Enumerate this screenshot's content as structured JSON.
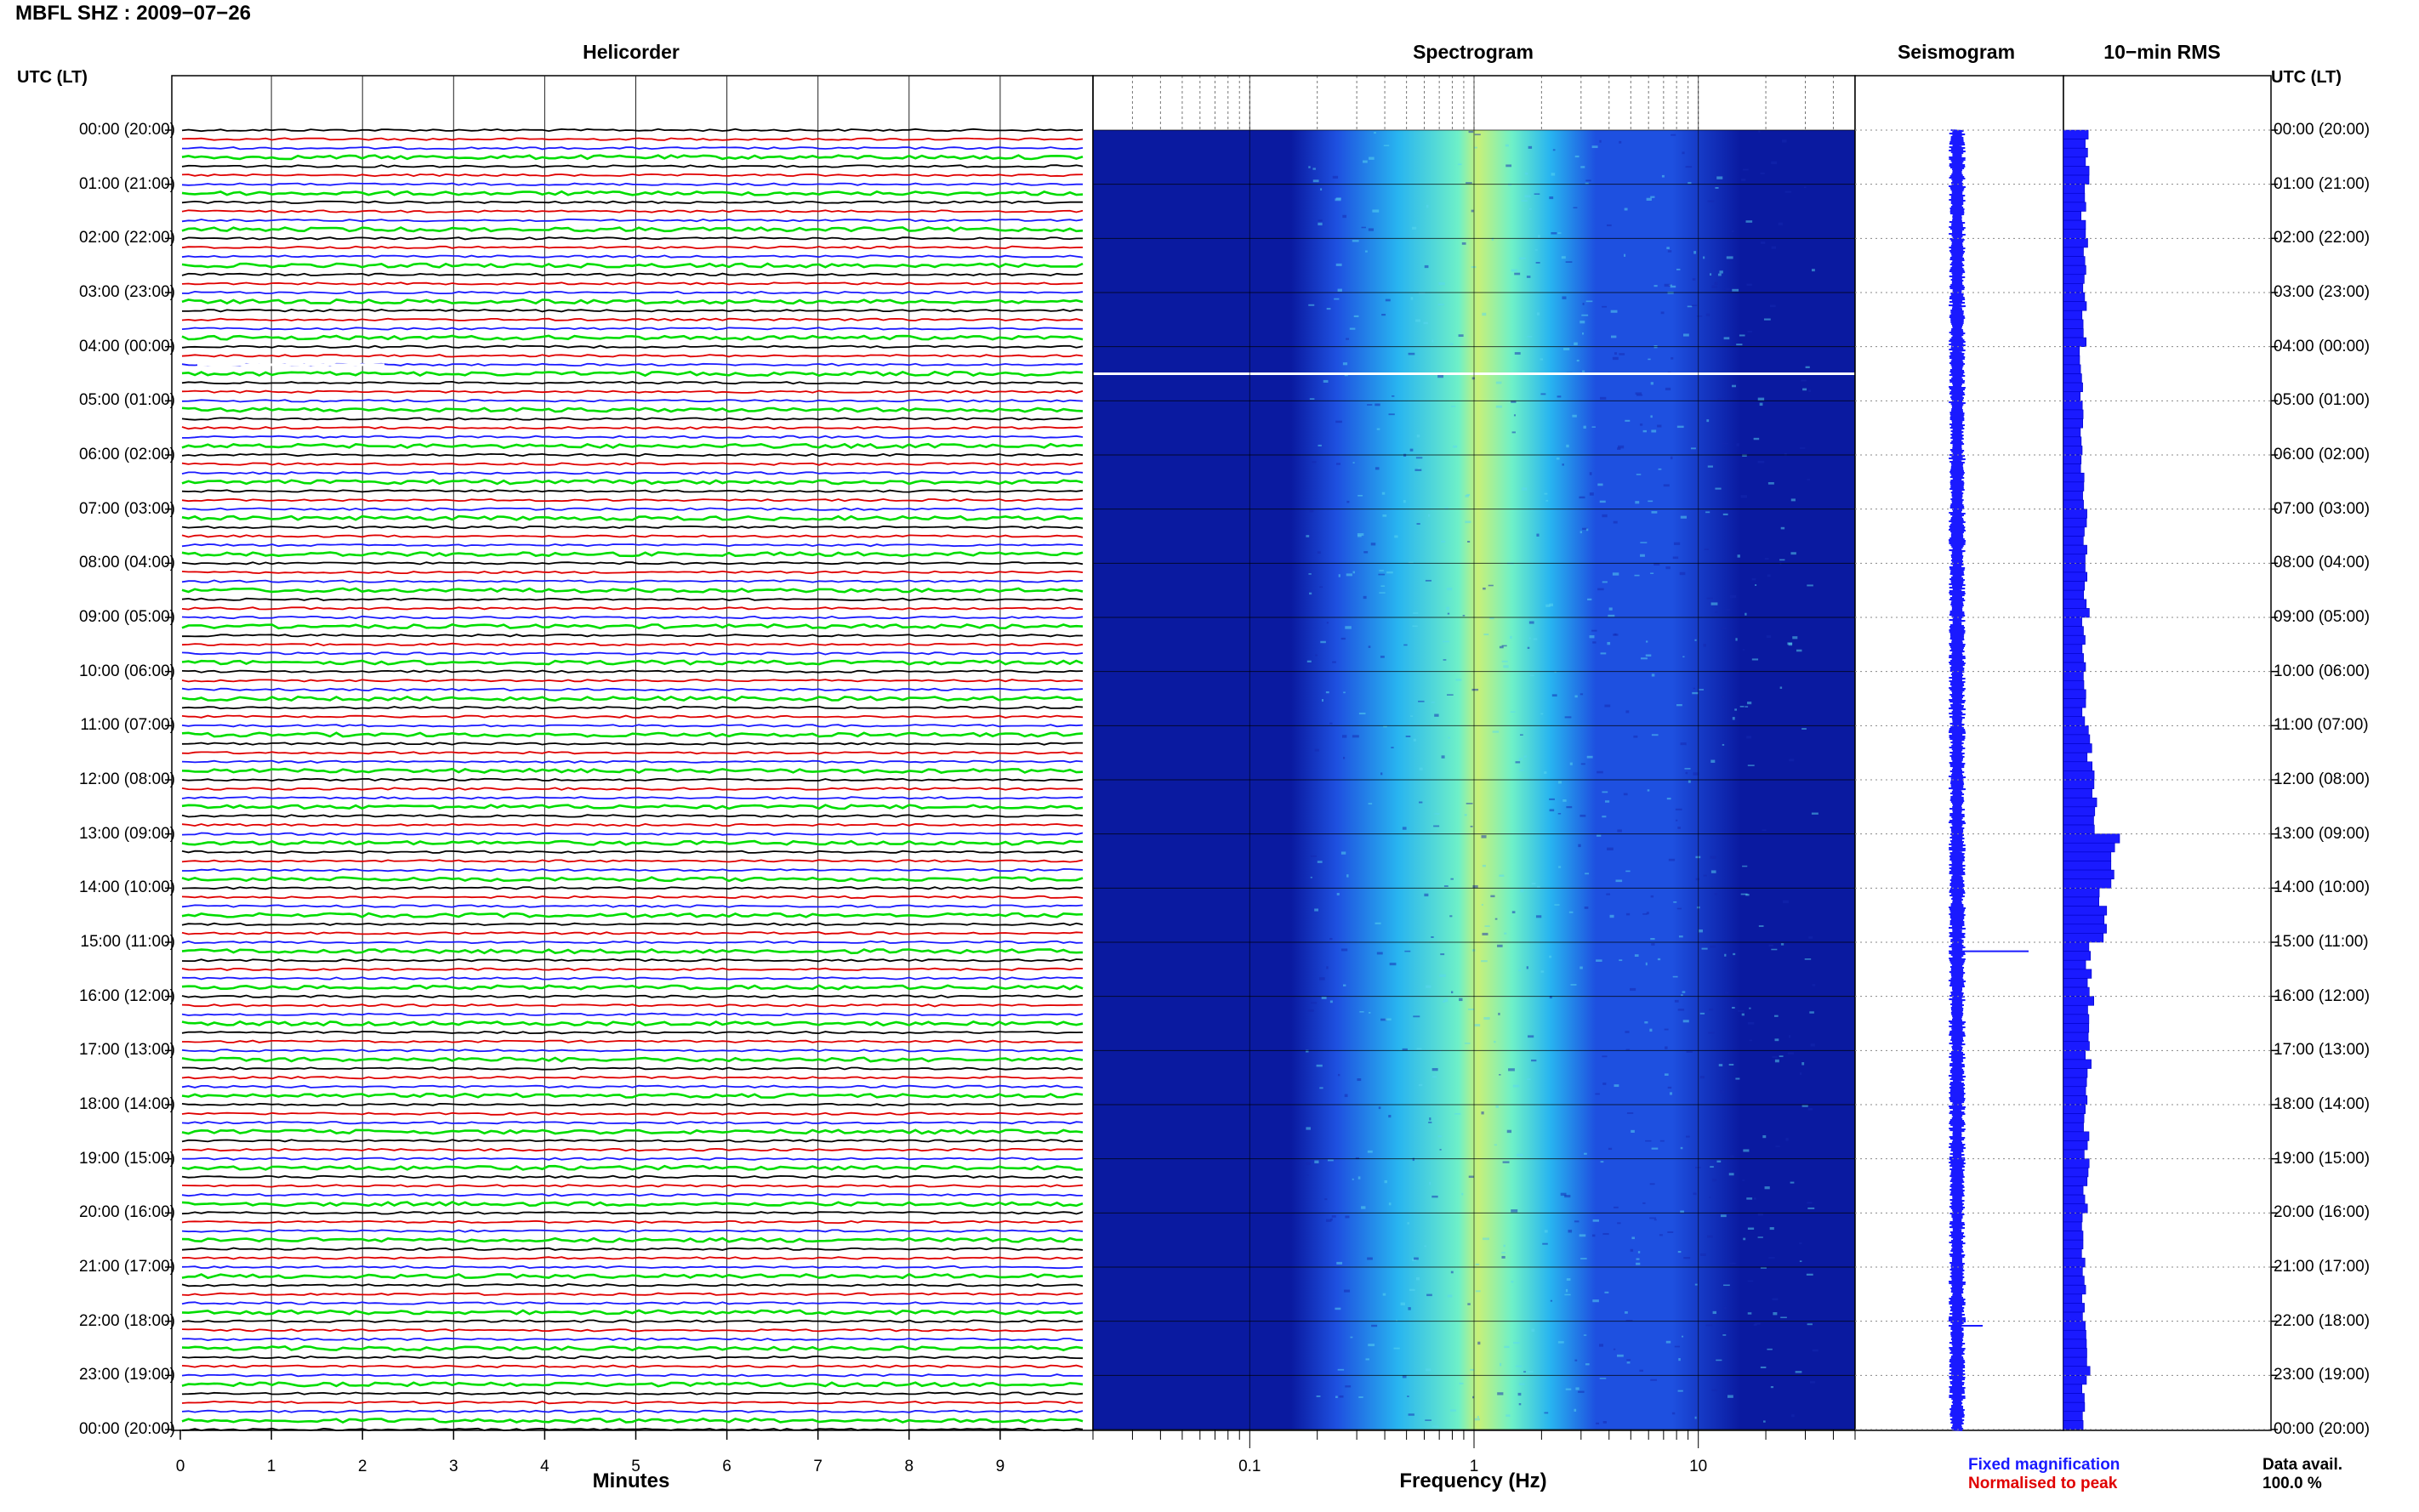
{
  "header": {
    "station_title": "MBFL SHZ : 2009−07−26"
  },
  "panels": {
    "helicorder": "Helicorder",
    "spectrogram": "Spectrogram",
    "seismogram": "Seismogram",
    "rms": "10−min RMS"
  },
  "axes": {
    "utc_label_left": "UTC (LT)",
    "utc_label_right": "UTC (LT)",
    "time_ticks": [
      "00:00 (20:00)",
      "01:00 (21:00)",
      "02:00 (22:00)",
      "03:00 (23:00)",
      "04:00 (00:00)",
      "05:00 (01:00)",
      "06:00 (02:00)",
      "07:00 (03:00)",
      "08:00 (04:00)",
      "09:00 (05:00)",
      "10:00 (06:00)",
      "11:00 (07:00)",
      "12:00 (08:00)",
      "13:00 (09:00)",
      "14:00 (10:00)",
      "15:00 (11:00)",
      "16:00 (12:00)",
      "17:00 (13:00)",
      "18:00 (14:00)",
      "19:00 (15:00)",
      "20:00 (16:00)",
      "21:00 (17:00)",
      "22:00 (18:00)",
      "23:00 (19:00)",
      "00:00 (20:00)"
    ],
    "minutes_ticks": [
      "0",
      "1",
      "2",
      "3",
      "4",
      "5",
      "6",
      "7",
      "8",
      "9"
    ],
    "minutes_label": "Minutes",
    "freq_ticks": [
      "0.1",
      "1",
      "10"
    ],
    "freq_label": "Frequency (Hz)"
  },
  "legend": {
    "fixed": "Fixed magnification",
    "normalised": "Normalised to peak",
    "fixed_color": "#1a1aff",
    "normalised_color": "#e00000"
  },
  "availability": {
    "label": "Data avail.",
    "value": "100.0 %"
  },
  "chart_data": [
    {
      "type": "line",
      "title": "Helicorder",
      "xlabel": "Minutes",
      "xlim": [
        0,
        10
      ],
      "trace_colors": [
        "#000000",
        "#e00000",
        "#1a1aff",
        "#00dd00"
      ],
      "traces_per_hour": 6,
      "time_range_utc": [
        "00:00",
        "24:00"
      ],
      "gap_utc": "04:20"
    },
    {
      "type": "heatmap",
      "title": "Spectrogram",
      "xlabel": "Frequency (Hz)",
      "x_scale": "log",
      "xlim": [
        0.02,
        50
      ],
      "x_ticks": [
        0.1,
        1,
        10
      ],
      "y_range_utc": [
        "00:00",
        "24:00"
      ],
      "colormap": [
        "#0a1aa0",
        "#1e50e0",
        "#28b4f0",
        "#6ef0c8",
        "#c8f078"
      ],
      "peak_frequency_hz": 1,
      "gap_utc": "04:30"
    },
    {
      "type": "line",
      "title": "Seismogram",
      "legend": [
        "Fixed magnification",
        "Normalised to peak"
      ],
      "events_utc": [
        "15:10",
        "22:05"
      ]
    },
    {
      "type": "bar",
      "title": "10−min RMS",
      "orientation": "horizontal",
      "bin_minutes": 10,
      "hours": [
        0,
        1,
        2,
        3,
        4,
        5,
        6,
        7,
        8,
        9,
        10,
        11,
        12,
        13,
        14,
        15,
        16,
        17,
        18,
        19,
        20,
        21,
        22,
        23
      ],
      "relative_level": [
        0.55,
        0.5,
        0.55,
        0.5,
        0.45,
        0.45,
        0.45,
        0.5,
        0.55,
        0.5,
        0.5,
        0.65,
        0.75,
        1.2,
        1.0,
        0.6,
        0.65,
        0.6,
        0.55,
        0.55,
        0.5,
        0.5,
        0.6,
        0.5
      ],
      "max_level": 1.2
    }
  ]
}
